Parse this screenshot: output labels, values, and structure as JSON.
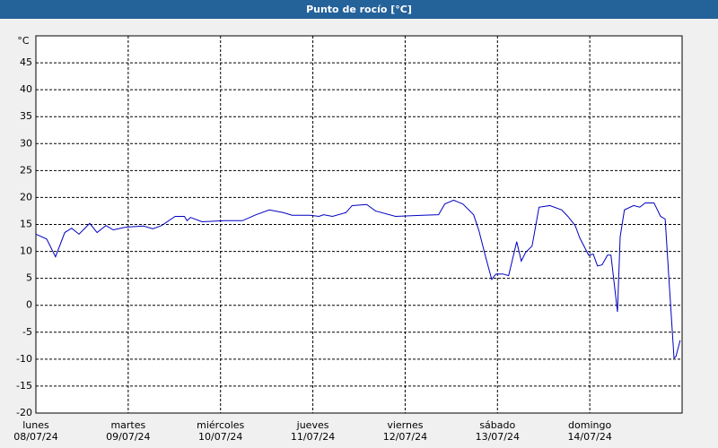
{
  "chart_data": {
    "type": "line",
    "title": "Punto de rocío [°C]",
    "ylabel": "°C",
    "xlim": [
      0,
      168
    ],
    "ylim": [
      -20,
      50
    ],
    "xticks": [
      {
        "value": 0,
        "label": "lunes\n08/07/24"
      },
      {
        "value": 24,
        "label": "martes\n09/07/24"
      },
      {
        "value": 48,
        "label": "miércoles\n10/07/24"
      },
      {
        "value": 72,
        "label": "jueves\n11/07/24"
      },
      {
        "value": 96,
        "label": "viernes\n12/07/24"
      },
      {
        "value": 120,
        "label": "sábado\n13/07/24"
      },
      {
        "value": 144,
        "label": "domingo\n14/07/24"
      }
    ],
    "yticks": [
      -20,
      -15,
      -10,
      -5,
      0,
      5,
      10,
      15,
      20,
      25,
      30,
      35,
      40,
      45
    ],
    "grid": true,
    "series": [
      {
        "color": "#0000c0",
        "x": [
          0,
          2.8,
          5.1,
          7.5,
          9.3,
          11.2,
          14,
          15.9,
          18.2,
          20.1,
          23.4,
          28,
          30.4,
          32.7,
          36.2,
          38.6,
          39.3,
          40.2,
          43.2,
          49.1,
          53.7,
          57.2,
          60.7,
          64.3,
          66.6,
          71.3,
          73.6,
          74.8,
          77.1,
          80.6,
          82.2,
          86,
          88.3,
          93.5,
          100.5,
          104.7,
          106.3,
          108.6,
          111,
          113.8,
          115.2,
          116.8,
          118.5,
          119.6,
          121.5,
          122.9,
          125,
          126.2,
          127.3,
          129,
          130.8,
          133.6,
          136.7,
          138.3,
          140.2,
          141.4,
          143.7,
          144.9,
          146,
          147.2,
          148.6,
          149.5,
          151.2,
          151.9,
          153,
          155.4,
          157,
          158.4,
          160.7,
          162.4,
          163.6,
          164.7,
          165.9,
          166.4,
          167.5
        ],
        "values": [
          13.2,
          12.3,
          9,
          13.5,
          14.3,
          13.2,
          15.2,
          13.5,
          14.8,
          14,
          14.5,
          14.7,
          14.2,
          14.8,
          16.5,
          16.5,
          15.7,
          16.3,
          15.5,
          15.7,
          15.7,
          16.8,
          17.7,
          17.2,
          16.7,
          16.7,
          16.5,
          16.8,
          16.5,
          17.2,
          18.5,
          18.7,
          17.5,
          16.5,
          16.7,
          16.8,
          18.8,
          19.5,
          18.8,
          16.8,
          13.8,
          9.3,
          4.8,
          5.8,
          5.8,
          5.5,
          11.8,
          8.2,
          9.8,
          11,
          18.2,
          18.5,
          17.7,
          16.5,
          14.8,
          12.5,
          9.3,
          9.5,
          7.3,
          7.5,
          9.3,
          9.3,
          -1.2,
          12.7,
          17.7,
          18.5,
          18.2,
          19,
          19,
          16.5,
          16,
          3.5,
          -9.8,
          -9.5,
          -6.5
        ]
      }
    ]
  }
}
